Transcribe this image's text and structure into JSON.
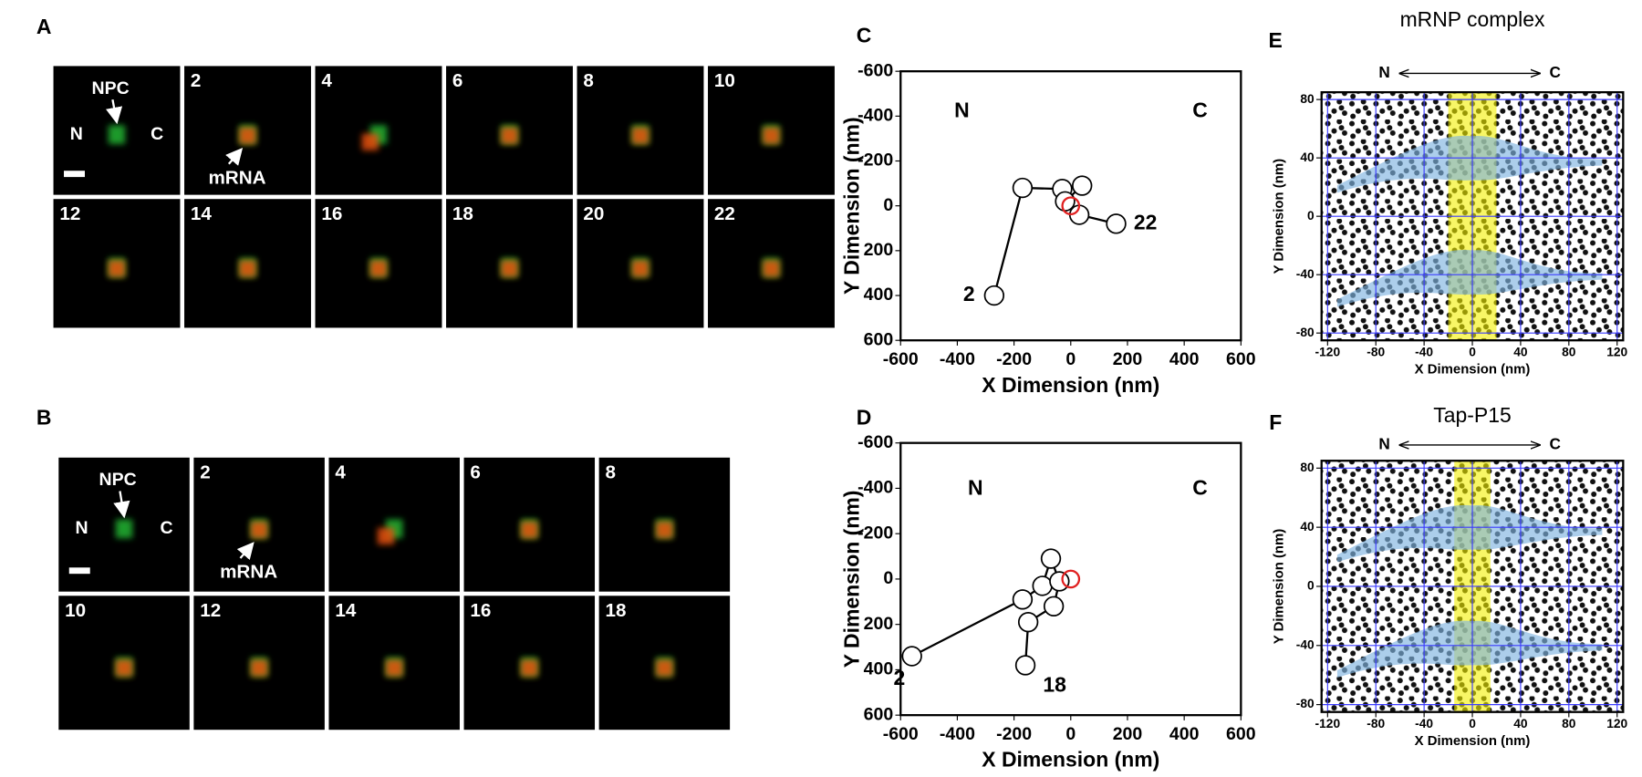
{
  "microscopy": [
    {
      "label": "A",
      "npc": "NPC",
      "n": "N",
      "c": "C",
      "mrna": "mRNA",
      "frames": [
        "2",
        "4",
        "6",
        "8",
        "10",
        "12",
        "14",
        "16",
        "18",
        "20",
        "22"
      ]
    },
    {
      "label": "B",
      "npc": "NPC",
      "n": "N",
      "c": "C",
      "mrna": "mRNA",
      "frames": [
        "2",
        "4",
        "6",
        "8",
        "10",
        "12",
        "14",
        "16",
        "18"
      ]
    }
  ],
  "chart_data": [
    {
      "type": "line",
      "label": "C",
      "xlabel": "X Dimension (nm)",
      "ylabel": "Y Dimension (nm)",
      "x": [
        -270,
        -170,
        -30,
        40,
        -20,
        30,
        160
      ],
      "values": [
        400,
        -80,
        -75,
        -90,
        -20,
        40,
        80
      ],
      "reference": {
        "x": 0,
        "y": 0,
        "color": "#e02020"
      },
      "annotations": [
        "N",
        "C",
        "2",
        "22"
      ],
      "xlim": [
        -600,
        600
      ],
      "xticks": [
        -600,
        -400,
        -200,
        0,
        200,
        400,
        600
      ],
      "ylim": [
        600,
        -600
      ],
      "yticks": [
        -600,
        -400,
        -200,
        0,
        200,
        400,
        600
      ]
    },
    {
      "type": "line",
      "label": "D",
      "xlabel": "X Dimension (nm)",
      "ylabel": "Y Dimension (nm)",
      "x": [
        -560,
        -170,
        -100,
        -70,
        -40,
        -60,
        -150,
        -160
      ],
      "values": [
        340,
        90,
        30,
        -90,
        10,
        120,
        190,
        380
      ],
      "reference": {
        "x": 0,
        "y": 0,
        "color": "#e02020"
      },
      "annotations": [
        "N",
        "C",
        "2",
        "18"
      ],
      "xlim": [
        -600,
        600
      ],
      "xticks": [
        -600,
        -400,
        -200,
        0,
        200,
        400,
        600
      ],
      "ylim": [
        600,
        -600
      ],
      "yticks": [
        -600,
        -400,
        -200,
        0,
        200,
        400,
        600
      ]
    },
    {
      "type": "scatter",
      "label": "E",
      "title": "mRNP complex",
      "n": "N",
      "c": "C",
      "xlabel": "X Dimension (nm)",
      "ylabel": "Y Dimension (nm)",
      "band": [
        -20,
        20
      ],
      "xlim": [
        -125,
        125
      ],
      "xticks": [
        -120,
        -80,
        -40,
        0,
        40,
        80,
        120
      ],
      "ylim": [
        -85,
        85
      ],
      "yticks": [
        -80,
        -40,
        0,
        40,
        80
      ]
    },
    {
      "type": "scatter",
      "label": "F",
      "title": "Tap-P15",
      "n": "N",
      "c": "C",
      "xlabel": "X Dimension (nm)",
      "ylabel": "Y Dimension (nm)",
      "band": [
        -15,
        15
      ],
      "xlim": [
        -125,
        125
      ],
      "xticks": [
        -120,
        -80,
        -40,
        0,
        40,
        80,
        120
      ],
      "ylim": [
        -85,
        85
      ],
      "yticks": [
        -80,
        -40,
        0,
        40,
        80
      ]
    }
  ]
}
